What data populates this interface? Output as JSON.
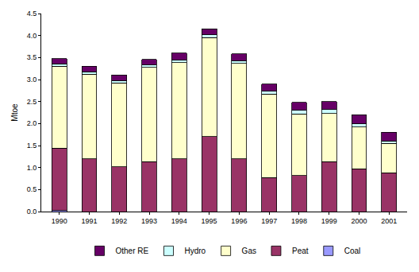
{
  "chart_data": {
    "type": "bar",
    "stacked": true,
    "y_label": "Mtoe",
    "categories": [
      "1990",
      "1991",
      "1992",
      "1993",
      "1994",
      "1995",
      "1996",
      "1997",
      "1998",
      "1999",
      "2000",
      "2001"
    ],
    "series": [
      {
        "name": "Coal",
        "color": "#9999ff",
        "values": [
          0.02,
          0,
          0,
          0,
          0,
          0,
          0,
          0,
          0,
          0,
          0,
          0
        ]
      },
      {
        "name": "Peat",
        "color": "#993366",
        "values": [
          1.42,
          1.2,
          1.02,
          1.13,
          1.2,
          1.7,
          1.2,
          0.77,
          0.82,
          1.13,
          0.97,
          0.88
        ]
      },
      {
        "name": "Gas",
        "color": "#ffffcc",
        "values": [
          1.86,
          1.92,
          1.9,
          2.15,
          2.18,
          2.25,
          2.17,
          1.9,
          1.4,
          1.1,
          0.95,
          0.67
        ]
      },
      {
        "name": "Hydro",
        "color": "#ccffff",
        "values": [
          0.06,
          0.06,
          0.06,
          0.05,
          0.06,
          0.07,
          0.06,
          0.06,
          0.08,
          0.09,
          0.07,
          0.05
        ]
      },
      {
        "name": "Other RE",
        "color": "#660066",
        "values": [
          0.11,
          0.12,
          0.12,
          0.13,
          0.16,
          0.13,
          0.15,
          0.17,
          0.18,
          0.18,
          0.21,
          0.2
        ]
      }
    ],
    "ylim": [
      0,
      4.5
    ],
    "yticks": [
      {
        "value": 0,
        "label": "0.0"
      },
      0.5,
      {
        "value": 1,
        "label": "1.0"
      },
      1.5,
      {
        "value": 2,
        "label": "2.0"
      },
      2.5,
      {
        "value": 3,
        "label": "3.0"
      },
      3.5,
      {
        "value": 4,
        "label": "4.0"
      },
      4.5
    ],
    "grid": false,
    "legend": "bottom"
  }
}
